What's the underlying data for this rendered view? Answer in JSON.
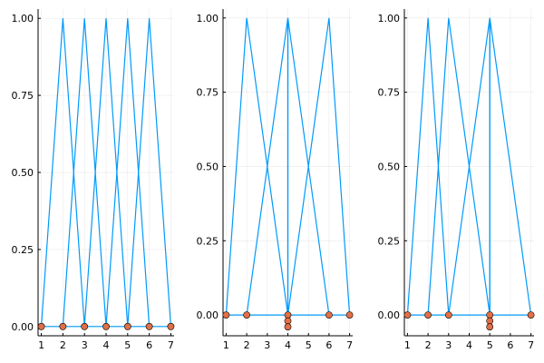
{
  "chart_data": [
    {
      "type": "line",
      "xlim": [
        0.85,
        7.15
      ],
      "ylim": [
        -0.03,
        1.03
      ],
      "x_ticks": [
        1,
        2,
        3,
        4,
        5,
        6,
        7
      ],
      "y_ticks": [
        "0.00",
        "0.25",
        "0.50",
        "0.75",
        "1.00"
      ],
      "grid": true,
      "line_color": "#009AFA",
      "marker_color": "#E26F46",
      "series": [
        {
          "x": [
            1,
            2,
            3
          ],
          "y": [
            0,
            1,
            0
          ]
        },
        {
          "x": [
            2,
            3,
            4
          ],
          "y": [
            0,
            1,
            0
          ]
        },
        {
          "x": [
            3,
            4,
            5
          ],
          "y": [
            0,
            1,
            0
          ]
        },
        {
          "x": [
            4,
            5,
            6
          ],
          "y": [
            0,
            1,
            0
          ]
        },
        {
          "x": [
            5,
            6,
            7
          ],
          "y": [
            0,
            1,
            0
          ]
        }
      ],
      "baseline": {
        "x": [
          1,
          7
        ],
        "y": [
          0,
          0
        ]
      },
      "knots": [
        {
          "x": 1,
          "y": 0
        },
        {
          "x": 2,
          "y": 0
        },
        {
          "x": 3,
          "y": 0
        },
        {
          "x": 4,
          "y": 0
        },
        {
          "x": 5,
          "y": 0
        },
        {
          "x": 6,
          "y": 0
        },
        {
          "x": 7,
          "y": 0
        }
      ]
    },
    {
      "type": "line",
      "xlim": [
        0.85,
        7.15
      ],
      "ylim": [
        -0.07,
        1.03
      ],
      "x_ticks": [
        1,
        2,
        3,
        4,
        5,
        6,
        7
      ],
      "y_ticks": [
        "0.00",
        "0.25",
        "0.50",
        "0.75",
        "1.00"
      ],
      "grid": true,
      "line_color": "#009AFA",
      "marker_color": "#E26F46",
      "series": [
        {
          "x": [
            1,
            2,
            4
          ],
          "y": [
            0,
            1,
            0
          ]
        },
        {
          "x": [
            2,
            4,
            4
          ],
          "y": [
            0,
            1,
            0
          ]
        },
        {
          "x": [
            4,
            4,
            6
          ],
          "y": [
            0,
            1,
            0
          ]
        },
        {
          "x": [
            4,
            6,
            7
          ],
          "y": [
            0,
            1,
            0
          ]
        }
      ],
      "baseline": {
        "x": [
          1,
          7
        ],
        "y": [
          0,
          0
        ]
      },
      "knots": [
        {
          "x": 1,
          "y": 0
        },
        {
          "x": 2,
          "y": 0
        },
        {
          "x": 4,
          "y": 0
        },
        {
          "x": 4,
          "y": -0.02
        },
        {
          "x": 4,
          "y": -0.04
        },
        {
          "x": 6,
          "y": 0
        },
        {
          "x": 7,
          "y": 0
        }
      ]
    },
    {
      "type": "line",
      "xlim": [
        0.85,
        7.15
      ],
      "ylim": [
        -0.07,
        1.03
      ],
      "x_ticks": [
        1,
        2,
        3,
        4,
        5,
        6,
        7
      ],
      "y_ticks": [
        "0.00",
        "0.25",
        "0.50",
        "0.75",
        "1.00"
      ],
      "grid": true,
      "line_color": "#009AFA",
      "marker_color": "#E26F46",
      "series": [
        {
          "x": [
            1,
            2,
            3
          ],
          "y": [
            0,
            1,
            0
          ]
        },
        {
          "x": [
            2,
            3,
            5
          ],
          "y": [
            0,
            1,
            0
          ]
        },
        {
          "x": [
            3,
            5,
            5
          ],
          "y": [
            0,
            1,
            0
          ]
        },
        {
          "x": [
            5,
            5,
            7
          ],
          "y": [
            0,
            1,
            0
          ]
        }
      ],
      "baseline": {
        "x": [
          1,
          7
        ],
        "y": [
          0,
          0
        ]
      },
      "knots": [
        {
          "x": 1,
          "y": 0
        },
        {
          "x": 2,
          "y": 0
        },
        {
          "x": 3,
          "y": 0
        },
        {
          "x": 5,
          "y": 0
        },
        {
          "x": 5,
          "y": -0.02
        },
        {
          "x": 5,
          "y": -0.04
        },
        {
          "x": 7,
          "y": 0
        }
      ]
    }
  ]
}
